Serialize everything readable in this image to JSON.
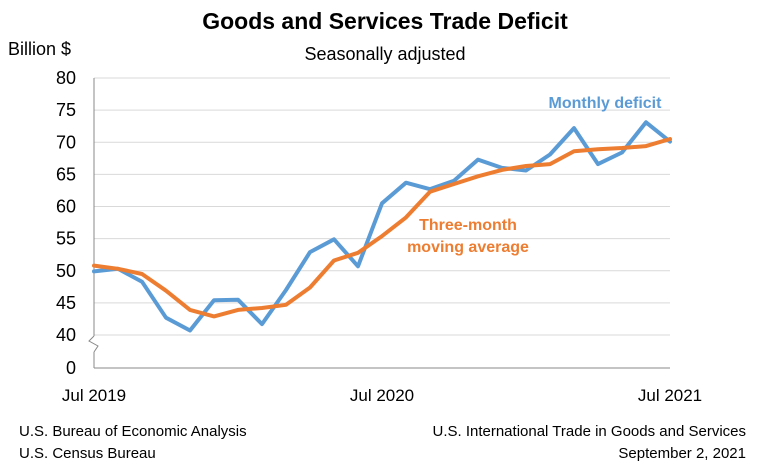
{
  "chart_data": {
    "type": "line",
    "title": "Goods and Services Trade Deficit",
    "subtitle": "Seasonally adjusted",
    "ylabel": "Billion $",
    "ylim": [
      0,
      80
    ],
    "y_axis_break": [
      0,
      40
    ],
    "y_ticks": [
      0,
      40,
      45,
      50,
      55,
      60,
      65,
      70,
      75,
      80
    ],
    "x_tick_labels": [
      "Jul 2019",
      "Jul 2020",
      "Jul 2021"
    ],
    "x": [
      "2019-07",
      "2019-08",
      "2019-09",
      "2019-10",
      "2019-11",
      "2019-12",
      "2020-01",
      "2020-02",
      "2020-03",
      "2020-04",
      "2020-05",
      "2020-06",
      "2020-07",
      "2020-08",
      "2020-09",
      "2020-10",
      "2020-11",
      "2020-12",
      "2021-01",
      "2021-02",
      "2021-03",
      "2021-04",
      "2021-05",
      "2021-06",
      "2021-07"
    ],
    "grid": true,
    "series": [
      {
        "name": "Monthly deficit",
        "color": "#5b9bd5",
        "values": [
          49.9,
          50.3,
          48.3,
          42.7,
          40.7,
          45.4,
          45.5,
          41.7,
          47.0,
          52.9,
          54.9,
          50.7,
          60.5,
          63.7,
          62.7,
          64.0,
          67.3,
          66.0,
          65.6,
          68.1,
          72.2,
          66.6,
          68.4,
          73.1,
          70.1
        ]
      },
      {
        "name": "Three-month\nmoving average",
        "color": "#ed7d31",
        "values": [
          50.8,
          50.3,
          49.5,
          46.9,
          43.9,
          42.9,
          43.9,
          44.2,
          44.7,
          47.4,
          51.6,
          52.8,
          55.4,
          58.3,
          62.3,
          63.5,
          64.7,
          65.7,
          66.3,
          66.6,
          68.6,
          68.9,
          69.1,
          69.4,
          70.5
        ]
      }
    ],
    "annotations": [
      "Monthly deficit",
      "Three-month moving average"
    ]
  },
  "footer": {
    "left_line1": "U.S. Bureau of Economic Analysis",
    "left_line2": "U.S. Census Bureau",
    "right_line1": "U.S. International Trade in Goods and Services",
    "right_line2": "September 2, 2021"
  }
}
